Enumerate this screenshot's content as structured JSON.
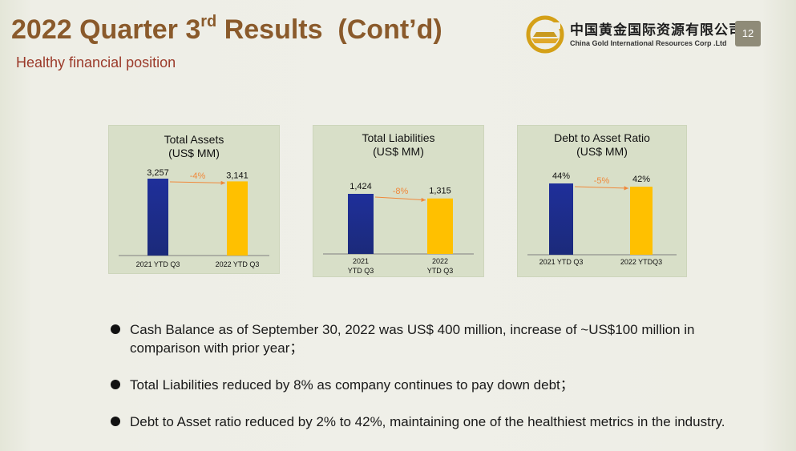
{
  "header": {
    "title_main": "2022 Quarter 3",
    "title_sup": "rd",
    "title_rest": "  Results  (Cont’d)",
    "subtitle": "Healthy financial position",
    "logo_cn": "中国黄金国际资源有限公司",
    "logo_en": "China Gold International Resources Corp .Ltd",
    "page_number": "12"
  },
  "colors": {
    "title": "#8a5a2b",
    "subtitle": "#9b3a2a",
    "bar_2021": "#1b2a7a",
    "bar_2022": "#ffc000",
    "change_label": "#f0883a",
    "panel_bg": "#d8dfc8"
  },
  "chart_data": [
    {
      "type": "bar",
      "title": "Total Assets",
      "unit_line": "(US$ MM)",
      "categories": [
        "2021 YTD Q3",
        "2022 YTD Q3"
      ],
      "values": [
        3257,
        3141
      ],
      "data_labels": [
        "3,257",
        "3,141"
      ],
      "change_label": "-4%",
      "ylim": [
        0,
        3257
      ]
    },
    {
      "type": "bar",
      "title": "Total Liabilities",
      "unit_line": "(US$ MM)",
      "categories": [
        "2021\nYTD Q3",
        "2022\nYTD Q3"
      ],
      "values": [
        1424,
        1315
      ],
      "data_labels": [
        "1,424",
        "1,315"
      ],
      "change_label": "-8%",
      "ylim": [
        0,
        1424
      ]
    },
    {
      "type": "bar",
      "title": "Debt to Asset Ratio",
      "unit_line": "(US$ MM)",
      "categories": [
        "2021  YTD Q3",
        "2022  YTDQ3"
      ],
      "values": [
        44,
        42
      ],
      "data_labels": [
        "44%",
        "42%"
      ],
      "change_label": "-5%",
      "ylim": [
        0,
        44
      ]
    }
  ],
  "bullets": [
    "Cash Balance as of September 30, 2022 was US$ 400 million,  increase of ~US$100 million in comparison with prior year；",
    "Total Liabilities reduced by 8% as company continues to pay down debt；",
    "Debt to Asset ratio reduced by 2% to 42%, maintaining one of the healthiest metrics in the industry."
  ]
}
